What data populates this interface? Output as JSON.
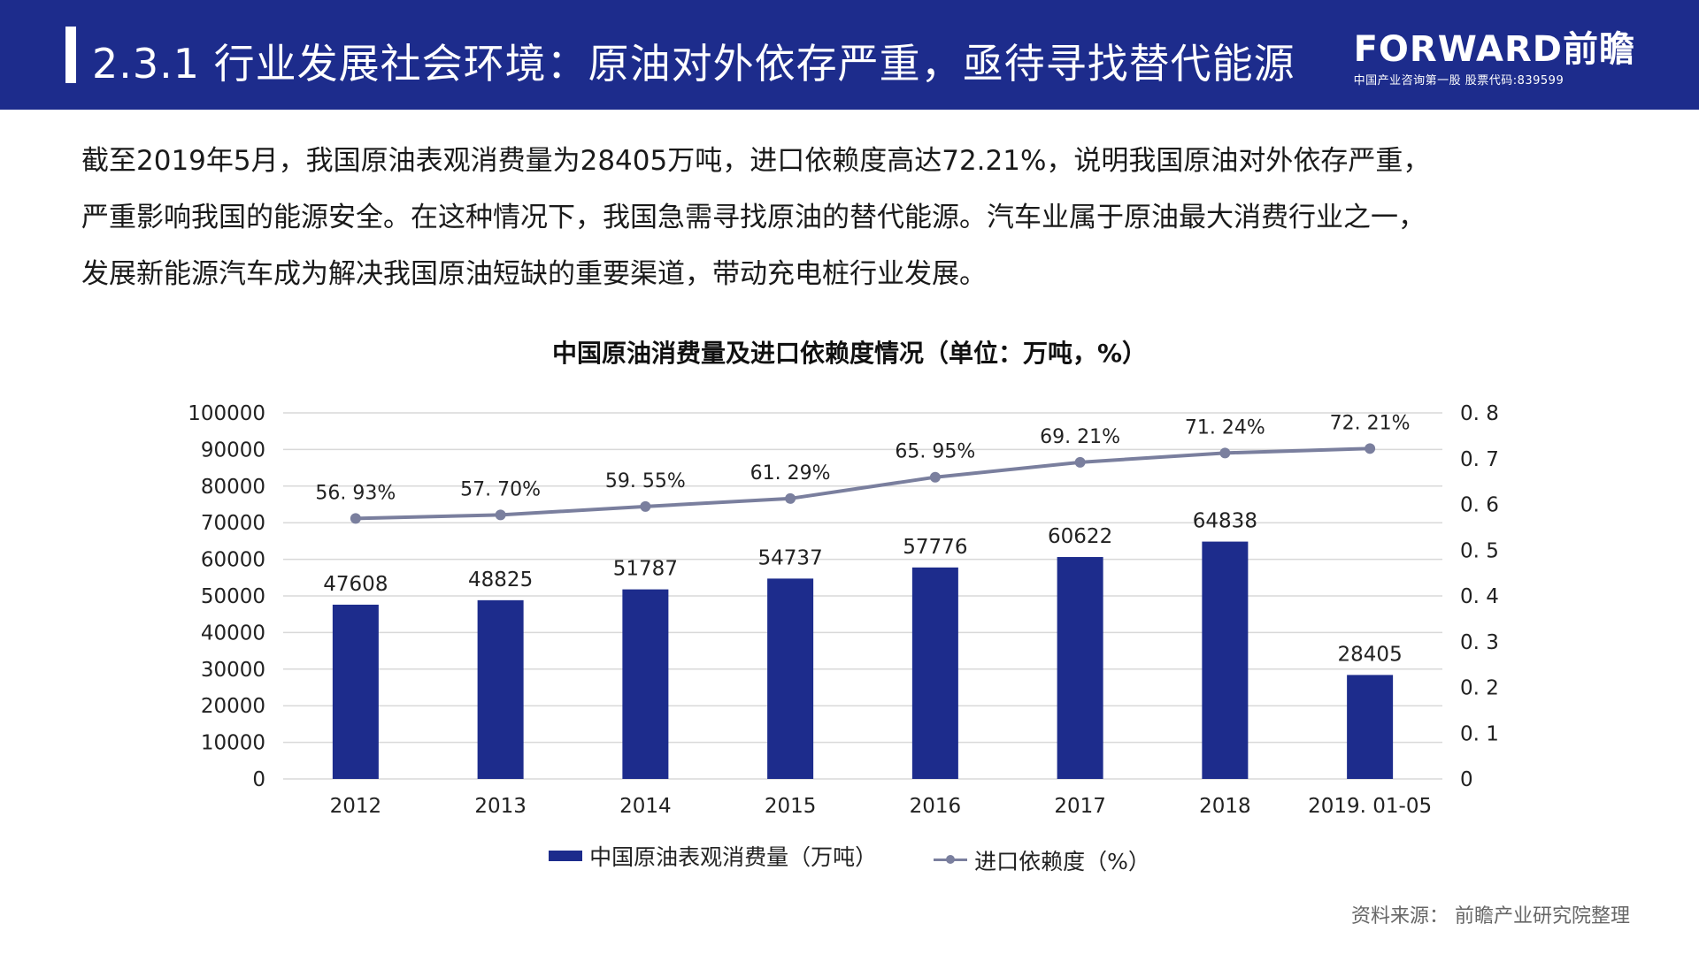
{
  "header": {
    "title": "2.3.1 行业发展社会环境：原油对外依存严重，亟待寻找替代能源",
    "logo_brand": "FORWARD前瞻",
    "logo_tagline": "中国产业咨询第一股 股票代码:839599"
  },
  "intro": {
    "lines": [
      "截至2019年5月，我国原油表观消费量为28405万吨，进口依赖度高达72.21%，说明我国原油对外依存严重，",
      "严重影响我国的能源安全。在这种情况下，我国急需寻找原油的替代能源。汽车业属于原油最大消费行业之一，",
      "发展新能源汽车成为解决我国原油短缺的重要渠道，带动充电桩行业发展。"
    ]
  },
  "chart_data": {
    "type": "bar",
    "title": "中国原油消费量及进口依赖度情况（单位：万吨，%）",
    "categories": [
      "2012",
      "2013",
      "2014",
      "2015",
      "2016",
      "2017",
      "2018",
      "2019. 01-05"
    ],
    "series": [
      {
        "name": "中国原油表观消费量（万吨）",
        "type": "bar",
        "axis": "left",
        "values": [
          47608,
          48825,
          51787,
          54737,
          57776,
          60622,
          64838,
          28405
        ],
        "labels": [
          "47608",
          "48825",
          "51787",
          "54737",
          "57776",
          "60622",
          "64838",
          "28405"
        ]
      },
      {
        "name": "进口依赖度（%）",
        "type": "line",
        "axis": "right",
        "values": [
          0.5693,
          0.577,
          0.5955,
          0.6129,
          0.6595,
          0.6921,
          0.7124,
          0.7221
        ],
        "labels": [
          "56. 93%",
          "57. 70%",
          "59. 55%",
          "61. 29%",
          "65. 95%",
          "69. 21%",
          "71. 24%",
          "72. 21%"
        ]
      }
    ],
    "y_left": {
      "min": 0,
      "max": 100000,
      "ticks": [
        "0",
        "10000",
        "20000",
        "30000",
        "40000",
        "50000",
        "60000",
        "70000",
        "80000",
        "90000",
        "100000"
      ]
    },
    "y_right": {
      "min": 0,
      "max": 0.8,
      "ticks": [
        "0",
        "0. 1",
        "0. 2",
        "0. 3",
        "0. 4",
        "0. 5",
        "0. 6",
        "0. 7",
        "0. 8"
      ]
    },
    "grid": true,
    "legend_position": "bottom",
    "colors": {
      "bar": "#1d2c8c",
      "line": "#7a7f9e",
      "grid": "#d9d9d9"
    }
  },
  "legend": {
    "bar_label": "中国原油表观消费量（万吨）",
    "line_label": "进口依赖度（%）"
  },
  "source": "资料来源： 前瞻产业研究院整理"
}
